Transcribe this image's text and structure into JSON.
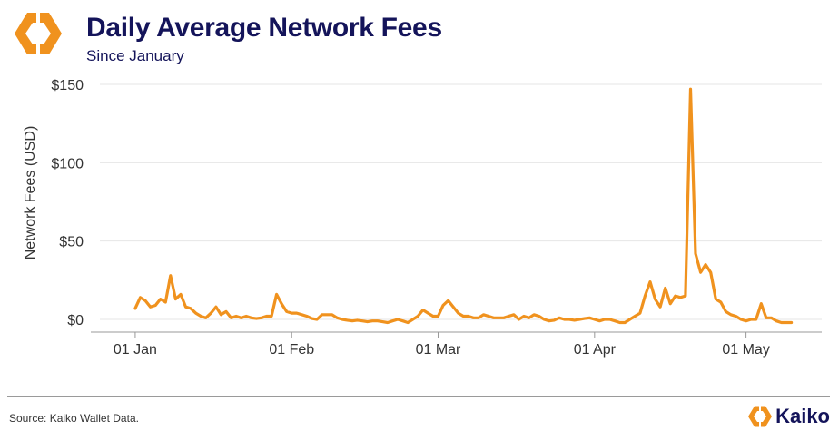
{
  "header": {
    "title": "Daily Average Network Fees",
    "subtitle": "Since January",
    "logo_icon": "kaiko-diamond-icon"
  },
  "footer": {
    "source": "Source: Kaiko Wallet Data.",
    "brand": "Kaiko"
  },
  "colors": {
    "line": "#F0921E",
    "title": "#14145A",
    "grid": "#E6E6E6"
  },
  "chart_data": {
    "type": "line",
    "ylabel": "Network Fees (USD)",
    "xlabel": "",
    "ylim": [
      0,
      150
    ],
    "y_ticks": [
      {
        "value": 0,
        "label": "$0"
      },
      {
        "value": 50,
        "label": "$50"
      },
      {
        "value": 100,
        "label": "$100"
      },
      {
        "value": 150,
        "label": "$150"
      }
    ],
    "x_ticks": [
      {
        "value": "2024-01-01",
        "label": "01 Jan"
      },
      {
        "value": "2024-02-01",
        "label": "01 Feb"
      },
      {
        "value": "2024-03-01",
        "label": "01 Mar"
      },
      {
        "value": "2024-04-01",
        "label": "01 Apr"
      },
      {
        "value": "2024-05-01",
        "label": "01 May"
      }
    ],
    "xlim": [
      "2023-12-25",
      "2024-05-16"
    ],
    "grid": true,
    "series": [
      {
        "points": [
          [
            "2024-01-01",
            7
          ],
          [
            "2024-01-02",
            14
          ],
          [
            "2024-01-03",
            12
          ],
          [
            "2024-01-04",
            8
          ],
          [
            "2024-01-05",
            9
          ],
          [
            "2024-01-06",
            13
          ],
          [
            "2024-01-07",
            11
          ],
          [
            "2024-01-08",
            28
          ],
          [
            "2024-01-09",
            13
          ],
          [
            "2024-01-10",
            16
          ],
          [
            "2024-01-11",
            8
          ],
          [
            "2024-01-12",
            7
          ],
          [
            "2024-01-13",
            4
          ],
          [
            "2024-01-14",
            2
          ],
          [
            "2024-01-15",
            1
          ],
          [
            "2024-01-16",
            4
          ],
          [
            "2024-01-17",
            8
          ],
          [
            "2024-01-18",
            3
          ],
          [
            "2024-01-19",
            5
          ],
          [
            "2024-01-20",
            1
          ],
          [
            "2024-01-21",
            2
          ],
          [
            "2024-01-22",
            1
          ],
          [
            "2024-01-23",
            2
          ],
          [
            "2024-01-24",
            1
          ],
          [
            "2024-01-25",
            0.5
          ],
          [
            "2024-01-26",
            1
          ],
          [
            "2024-01-27",
            2
          ],
          [
            "2024-01-28",
            2
          ],
          [
            "2024-01-29",
            16
          ],
          [
            "2024-01-30",
            10
          ],
          [
            "2024-01-31",
            5
          ],
          [
            "2024-02-01",
            4
          ],
          [
            "2024-02-02",
            4
          ],
          [
            "2024-02-03",
            3
          ],
          [
            "2024-02-04",
            2
          ],
          [
            "2024-02-05",
            0.5
          ],
          [
            "2024-02-06",
            0
          ],
          [
            "2024-02-07",
            3
          ],
          [
            "2024-02-08",
            3
          ],
          [
            "2024-02-09",
            3
          ],
          [
            "2024-02-10",
            1
          ],
          [
            "2024-02-11",
            0
          ],
          [
            "2024-02-12",
            -0.5
          ],
          [
            "2024-02-13",
            -1
          ],
          [
            "2024-02-14",
            -0.5
          ],
          [
            "2024-02-15",
            -1
          ],
          [
            "2024-02-16",
            -1.5
          ],
          [
            "2024-02-17",
            -1
          ],
          [
            "2024-02-18",
            -1
          ],
          [
            "2024-02-19",
            -1.5
          ],
          [
            "2024-02-20",
            -2
          ],
          [
            "2024-02-21",
            -1
          ],
          [
            "2024-02-22",
            0
          ],
          [
            "2024-02-23",
            -1
          ],
          [
            "2024-02-24",
            -2
          ],
          [
            "2024-02-25",
            0
          ],
          [
            "2024-02-26",
            2
          ],
          [
            "2024-02-27",
            6
          ],
          [
            "2024-02-28",
            4
          ],
          [
            "2024-02-29",
            2
          ],
          [
            "2024-03-01",
            2
          ],
          [
            "2024-03-02",
            9
          ],
          [
            "2024-03-03",
            12
          ],
          [
            "2024-03-04",
            8
          ],
          [
            "2024-03-05",
            4
          ],
          [
            "2024-03-06",
            2
          ],
          [
            "2024-03-07",
            2
          ],
          [
            "2024-03-08",
            1
          ],
          [
            "2024-03-09",
            1
          ],
          [
            "2024-03-10",
            3
          ],
          [
            "2024-03-11",
            2
          ],
          [
            "2024-03-12",
            1
          ],
          [
            "2024-03-13",
            1
          ],
          [
            "2024-03-14",
            1
          ],
          [
            "2024-03-15",
            2
          ],
          [
            "2024-03-16",
            3
          ],
          [
            "2024-03-17",
            0
          ],
          [
            "2024-03-18",
            2
          ],
          [
            "2024-03-19",
            1
          ],
          [
            "2024-03-20",
            3
          ],
          [
            "2024-03-21",
            2
          ],
          [
            "2024-03-22",
            0
          ],
          [
            "2024-03-23",
            -1
          ],
          [
            "2024-03-24",
            -0.5
          ],
          [
            "2024-03-25",
            1
          ],
          [
            "2024-03-26",
            0
          ],
          [
            "2024-03-27",
            0
          ],
          [
            "2024-03-28",
            -0.5
          ],
          [
            "2024-03-29",
            0
          ],
          [
            "2024-03-30",
            0.5
          ],
          [
            "2024-03-31",
            1
          ],
          [
            "2024-04-01",
            0
          ],
          [
            "2024-04-02",
            -1
          ],
          [
            "2024-04-03",
            0
          ],
          [
            "2024-04-04",
            0
          ],
          [
            "2024-04-05",
            -1
          ],
          [
            "2024-04-06",
            -2
          ],
          [
            "2024-04-07",
            -2
          ],
          [
            "2024-04-08",
            0
          ],
          [
            "2024-04-09",
            2
          ],
          [
            "2024-04-10",
            4
          ],
          [
            "2024-04-11",
            15
          ],
          [
            "2024-04-12",
            24
          ],
          [
            "2024-04-13",
            13
          ],
          [
            "2024-04-14",
            8
          ],
          [
            "2024-04-15",
            20
          ],
          [
            "2024-04-16",
            10
          ],
          [
            "2024-04-17",
            15
          ],
          [
            "2024-04-18",
            14
          ],
          [
            "2024-04-19",
            15
          ],
          [
            "2024-04-20",
            147
          ],
          [
            "2024-04-21",
            42
          ],
          [
            "2024-04-22",
            30
          ],
          [
            "2024-04-23",
            35
          ],
          [
            "2024-04-24",
            30
          ],
          [
            "2024-04-25",
            13
          ],
          [
            "2024-04-26",
            11
          ],
          [
            "2024-04-27",
            5
          ],
          [
            "2024-04-28",
            3
          ],
          [
            "2024-04-29",
            2
          ],
          [
            "2024-04-30",
            0
          ],
          [
            "2024-05-01",
            -1
          ],
          [
            "2024-05-02",
            0
          ],
          [
            "2024-05-03",
            0
          ],
          [
            "2024-05-04",
            10
          ],
          [
            "2024-05-05",
            1
          ],
          [
            "2024-05-06",
            1
          ],
          [
            "2024-05-07",
            -1
          ],
          [
            "2024-05-08",
            -2
          ],
          [
            "2024-05-09",
            -2
          ],
          [
            "2024-05-10",
            -2
          ]
        ]
      }
    ]
  }
}
